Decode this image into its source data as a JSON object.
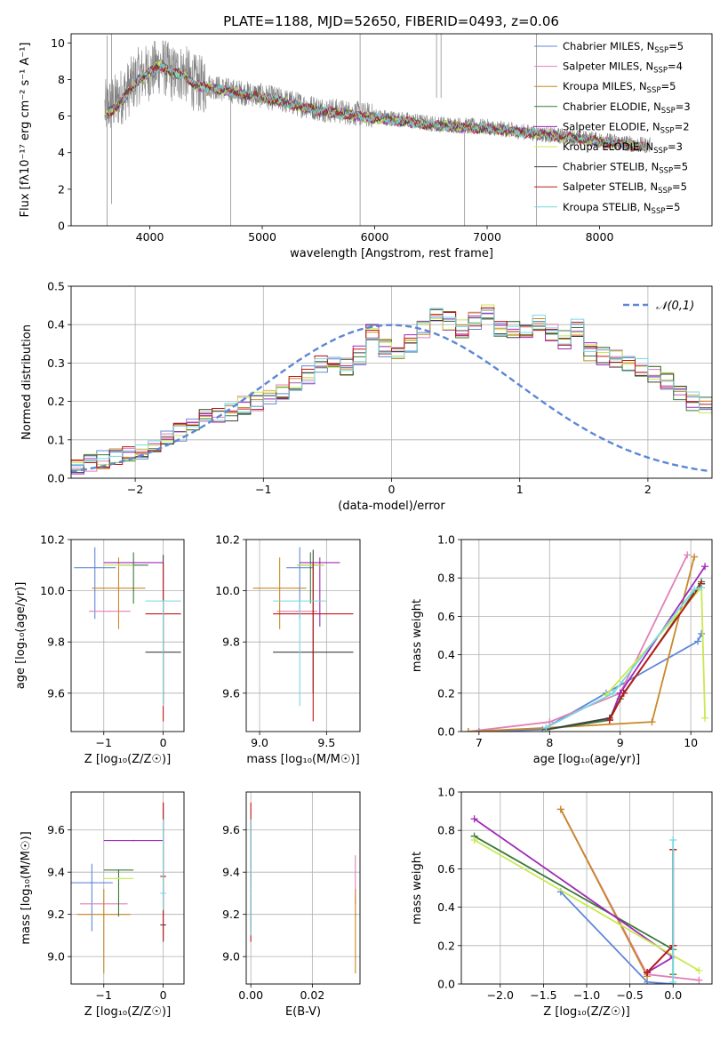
{
  "figure": {
    "title": "PLATE=1188, MJD=52650, FIBERID=0493, z=0.06"
  },
  "models": [
    {
      "name": "Chabrier MILES",
      "nssp": "5",
      "color": "#6088d8"
    },
    {
      "name": "Salpeter MILES",
      "nssp": "4",
      "color": "#e080b8"
    },
    {
      "name": "Kroupa MILES",
      "nssp": "5",
      "color": "#c88828"
    },
    {
      "name": "Chabrier ELODIE",
      "nssp": "3",
      "color": "#3a7a3a"
    },
    {
      "name": "Salpeter ELODIE",
      "nssp": "2",
      "color": "#a028b8"
    },
    {
      "name": "Kroupa ELODIE",
      "nssp": "3",
      "color": "#c8e850"
    },
    {
      "name": "Chabrier STELIB",
      "nssp": "5",
      "color": "#404040"
    },
    {
      "name": "Salpeter STELIB",
      "nssp": "5",
      "color": "#c01818"
    },
    {
      "name": "Kroupa STELIB",
      "nssp": "5",
      "color": "#78d8e0"
    }
  ],
  "chart_data": [
    {
      "id": "spectrum",
      "type": "line",
      "xlabel": "wavelength [Angstrom, rest frame]",
      "ylabel": "Flux [fλ10⁻¹⁷ erg cm⁻² s⁻¹ A⁻¹]",
      "xlim": [
        3300,
        9000
      ],
      "ylim": [
        0,
        10.5
      ],
      "xticks": [
        4000,
        5000,
        6000,
        7000,
        8000
      ],
      "yticks": [
        0,
        2,
        4,
        6,
        8,
        10
      ],
      "data_series": {
        "name": "data",
        "color": "#808080",
        "x": [
          3600,
          3700,
          3800,
          3900,
          4000,
          4100,
          4200,
          4300,
          4400,
          4500,
          4700,
          5000,
          5500,
          6000,
          6500,
          7000,
          7500,
          8000,
          8400
        ],
        "y": [
          6.4,
          6.8,
          7.4,
          8.2,
          8.4,
          8.8,
          8.3,
          8.4,
          7.8,
          7.7,
          7.4,
          7.1,
          6.4,
          6.0,
          5.6,
          5.4,
          5.0,
          4.7,
          4.4
        ]
      },
      "model_series": {
        "names_from_models": true,
        "x": [
          3600,
          3700,
          3800,
          3900,
          4000,
          4100,
          4200,
          4300,
          4400,
          4500,
          4700,
          5000,
          5500,
          6000,
          6500,
          7000,
          7500,
          8000,
          8400
        ],
        "y": [
          6.0,
          6.5,
          7.2,
          8.0,
          8.4,
          8.8,
          8.3,
          8.3,
          7.7,
          7.6,
          7.3,
          7.0,
          6.3,
          5.9,
          5.5,
          5.3,
          5.0,
          4.6,
          4.3
        ]
      },
      "legend": "top-right",
      "grid": false
    },
    {
      "id": "residuals",
      "type": "line",
      "xlabel": "(data-model)/error",
      "ylabel": "Normed distribution",
      "xlim": [
        -2.5,
        2.5
      ],
      "ylim": [
        0,
        0.5
      ],
      "xticks": [
        -2,
        -1,
        0,
        1,
        2
      ],
      "yticks": [
        0.0,
        0.1,
        0.2,
        0.3,
        0.4,
        0.5
      ],
      "bin_edges_start": -2.5,
      "bin_width": 0.1,
      "histogram_shape": [
        0.035,
        0.042,
        0.047,
        0.052,
        0.06,
        0.07,
        0.085,
        0.1,
        0.12,
        0.14,
        0.155,
        0.17,
        0.17,
        0.19,
        0.2,
        0.21,
        0.22,
        0.25,
        0.27,
        0.3,
        0.3,
        0.29,
        0.32,
        0.38,
        0.34,
        0.33,
        0.35,
        0.39,
        0.42,
        0.41,
        0.39,
        0.41,
        0.43,
        0.39,
        0.39,
        0.38,
        0.41,
        0.38,
        0.36,
        0.39,
        0.33,
        0.32,
        0.31,
        0.3,
        0.29,
        0.27,
        0.25,
        0.22,
        0.2,
        0.19,
        0.18,
        0.16,
        0.14,
        0.12,
        0.11,
        0.1,
        0.09,
        0.08,
        0.07,
        0.06,
        0.05,
        0.045,
        0.04,
        0.035,
        0.03,
        0.03,
        0.028,
        0.028,
        0.026,
        0.025
      ],
      "reference_curve": {
        "label": "𝒩(0,1)",
        "color": "#5b87d6",
        "style": "dashed",
        "mean": 0,
        "sigma": 1
      },
      "legend": "top-right",
      "grid": true
    },
    {
      "id": "age-vs-Z",
      "type": "scatter",
      "xlabel": "Z [log₁₀(Z/Z☉)]",
      "ylabel": "age  [log₁₀(age/yr)]",
      "xlim": [
        -1.55,
        0.35
      ],
      "ylim": [
        9.45,
        10.2
      ],
      "xticks": [
        -1,
        0
      ],
      "yticks": [
        9.6,
        9.8,
        10.0,
        10.2
      ],
      "points": [
        {
          "x": -1.15,
          "y": 10.09,
          "xerr": 0.35,
          "yerr_lo": 0.2,
          "yerr_hi": 0.08,
          "model": 0
        },
        {
          "x": -0.9,
          "y": 9.92,
          "xerr": 0.35,
          "yerr_lo": 0.0,
          "yerr_hi": 0.0,
          "model": 1
        },
        {
          "x": -0.75,
          "y": 10.01,
          "xerr": 0.45,
          "yerr_lo": 0.16,
          "yerr_hi": 0.12,
          "model": 2
        },
        {
          "x": -0.5,
          "y": 10.1,
          "xerr": 0.25,
          "yerr_lo": 0.15,
          "yerr_hi": 0.05,
          "model": 3
        },
        {
          "x": -0.5,
          "y": 10.11,
          "xerr": 0.5,
          "yerr_lo": 0.0,
          "yerr_hi": 0.0,
          "model": 4
        },
        {
          "x": -0.75,
          "y": 10.1,
          "xerr": 0.25,
          "yerr_lo": 0.0,
          "yerr_hi": 0.0,
          "model": 5
        },
        {
          "x": 0.0,
          "y": 9.76,
          "xerr": 0.3,
          "yerr_lo": 0.2,
          "yerr_hi": 0.38,
          "model": 6
        },
        {
          "x": 0.0,
          "y": 9.91,
          "xerr": 0.3,
          "yerr_lo": 0.42,
          "yerr_hi": 0.2,
          "model": 7
        },
        {
          "x": 0.0,
          "y": 9.96,
          "xerr": 0.3,
          "yerr_lo": 0.41,
          "yerr_hi": 0.0,
          "model": 8
        }
      ],
      "grid": true
    },
    {
      "id": "age-vs-mass",
      "type": "scatter",
      "xlabel": "mass [log₁₀(M/M☉)]",
      "ylabel": "",
      "xlim": [
        8.9,
        9.75
      ],
      "ylim": [
        9.45,
        10.2
      ],
      "xticks": [
        9.0,
        9.5
      ],
      "yticks": [
        9.6,
        9.8,
        10.0,
        10.2
      ],
      "points": [
        {
          "x": 9.3,
          "y": 10.09,
          "xerr": 0.1,
          "yerr_lo": 0.2,
          "yerr_hi": 0.08,
          "model": 0
        },
        {
          "x": 9.28,
          "y": 9.92,
          "xerr": 0.15,
          "yerr_lo": 0.0,
          "yerr_hi": 0.0,
          "model": 1
        },
        {
          "x": 9.15,
          "y": 10.01,
          "xerr": 0.2,
          "yerr_lo": 0.16,
          "yerr_hi": 0.12,
          "model": 2
        },
        {
          "x": 9.38,
          "y": 10.1,
          "xerr": 0.1,
          "yerr_lo": 0.15,
          "yerr_hi": 0.05,
          "model": 3
        },
        {
          "x": 9.45,
          "y": 10.11,
          "xerr": 0.15,
          "yerr_lo": 0.25,
          "yerr_hi": 0.02,
          "model": 4
        },
        {
          "x": 9.38,
          "y": 10.1,
          "xerr": 0.1,
          "yerr_lo": 0.0,
          "yerr_hi": 0.0,
          "model": 5
        },
        {
          "x": 9.4,
          "y": 9.76,
          "xerr": 0.3,
          "yerr_lo": 0.16,
          "yerr_hi": 0.4,
          "model": 6
        },
        {
          "x": 9.4,
          "y": 9.91,
          "xerr": 0.3,
          "yerr_lo": 0.42,
          "yerr_hi": 0.2,
          "model": 7
        },
        {
          "x": 9.3,
          "y": 9.96,
          "xerr": 0.2,
          "yerr_lo": 0.41,
          "yerr_hi": 0.0,
          "model": 8
        }
      ],
      "grid": true
    },
    {
      "id": "weight-vs-age",
      "type": "line",
      "xlabel": "age  [log₁₀(age/yr)]",
      "ylabel": "mass weight",
      "xlim": [
        6.75,
        10.3
      ],
      "ylim": [
        0,
        1.0
      ],
      "xticks": [
        7,
        8,
        9,
        10
      ],
      "yticks": [
        0.0,
        0.2,
        0.4,
        0.6,
        0.8,
        1.0
      ],
      "series": [
        {
          "model": 0,
          "x": [
            7.0,
            7.9,
            8.8,
            10.1,
            10.15
          ],
          "y": [
            0.0,
            0.01,
            0.2,
            0.47,
            0.51
          ]
        },
        {
          "model": 1,
          "x": [
            6.85,
            8.0,
            9.0,
            9.95
          ],
          "y": [
            0.0,
            0.05,
            0.2,
            0.92
          ]
        },
        {
          "model": 2,
          "x": [
            6.85,
            8.0,
            9.45,
            10.05
          ],
          "y": [
            0.0,
            0.02,
            0.05,
            0.91
          ]
        },
        {
          "model": 3,
          "x": [
            7.95,
            8.85,
            9.0,
            10.15
          ],
          "y": [
            0.01,
            0.06,
            0.17,
            0.78
          ]
        },
        {
          "model": 4,
          "x": [
            8.85,
            9.0,
            10.2
          ],
          "y": [
            0.06,
            0.2,
            0.86
          ]
        },
        {
          "model": 5,
          "x": [
            8.8,
            10.15,
            10.2
          ],
          "y": [
            0.19,
            0.75,
            0.07
          ]
        },
        {
          "model": 6,
          "x": [
            7.95,
            8.85,
            9.05,
            10.15
          ],
          "y": [
            0.01,
            0.07,
            0.2,
            0.77
          ]
        },
        {
          "model": 7,
          "x": [
            8.85,
            9.05,
            10.15
          ],
          "y": [
            0.06,
            0.2,
            0.77
          ]
        },
        {
          "model": 8,
          "x": [
            7.95,
            8.9,
            10.05,
            10.15
          ],
          "y": [
            0.02,
            0.2,
            0.74,
            0.75
          ]
        }
      ],
      "grid": true
    },
    {
      "id": "mass-vs-Z",
      "type": "scatter",
      "xlabel": "Z [log₁₀(Z/Z☉)]",
      "ylabel": "mass [log₁₀(M/M☉)]",
      "xlim": [
        -1.55,
        0.35
      ],
      "ylim": [
        8.87,
        9.78
      ],
      "xticks": [
        -1,
        0
      ],
      "yticks": [
        9.0,
        9.2,
        9.4,
        9.6
      ],
      "points": [
        {
          "x": -1.2,
          "y": 9.35,
          "xerr": 0.35,
          "yerr_lo": 0.23,
          "yerr_hi": 0.09,
          "model": 0
        },
        {
          "x": -1.0,
          "y": 9.25,
          "xerr": 0.4,
          "yerr_lo": 0.0,
          "yerr_hi": 0.0,
          "model": 1
        },
        {
          "x": -1.0,
          "y": 9.2,
          "xerr": 0.45,
          "yerr_lo": 0.28,
          "yerr_hi": 0.12,
          "model": 2
        },
        {
          "x": -0.75,
          "y": 9.41,
          "xerr": 0.25,
          "yerr_lo": 0.22,
          "yerr_hi": 0.0,
          "model": 3
        },
        {
          "x": -0.5,
          "y": 9.55,
          "xerr": 0.5,
          "yerr_lo": 0.0,
          "yerr_hi": 0.0,
          "model": 4
        },
        {
          "x": -0.75,
          "y": 9.37,
          "xerr": 0.25,
          "yerr_lo": 0.0,
          "yerr_hi": 0.0,
          "model": 5
        },
        {
          "x": 0.0,
          "y": 9.15,
          "xerr": 0.05,
          "yerr_lo": 0.08,
          "yerr_hi": 0.58,
          "model": 6
        },
        {
          "x": 0.0,
          "y": 9.38,
          "xerr": 0.05,
          "yerr_lo": 0.3,
          "yerr_hi": 0.35,
          "model": 7
        },
        {
          "x": 0.0,
          "y": 9.3,
          "xerr": 0.05,
          "yerr_lo": 0.08,
          "yerr_hi": 0.35,
          "model": 8
        }
      ],
      "grid": true
    },
    {
      "id": "mass-vs-ebv",
      "type": "scatter",
      "xlabel": "E(B-V)",
      "ylabel": "",
      "xlim": [
        -0.0015,
        0.0355
      ],
      "ylim": [
        8.87,
        9.78
      ],
      "xticks": [
        0.0,
        0.02
      ],
      "yticks": [
        9.0,
        9.2,
        9.4,
        9.6
      ],
      "points": [
        {
          "x": 0.0,
          "y": 9.35,
          "yerr_lo": 0.23,
          "yerr_hi": 0.3,
          "model": 0
        },
        {
          "x": 0.034,
          "y": 9.25,
          "yerr_lo": 0.0,
          "yerr_hi": 0.23,
          "model": 1
        },
        {
          "x": 0.034,
          "y": 9.2,
          "yerr_lo": 0.28,
          "yerr_hi": 0.12,
          "model": 2
        },
        {
          "x": 0.0,
          "y": 9.38,
          "yerr_lo": 0.31,
          "yerr_hi": 0.35,
          "model": 7
        },
        {
          "x": 0.0,
          "y": 9.3,
          "yerr_lo": 0.2,
          "yerr_hi": 0.35,
          "model": 8
        }
      ],
      "grid": true
    },
    {
      "id": "weight-vs-Z",
      "type": "line",
      "xlabel": "Z [log₁₀(Z/Z☉)]",
      "ylabel": "mass weight",
      "xlim": [
        -2.45,
        0.45
      ],
      "ylim": [
        0,
        1.0
      ],
      "xticks": [
        -2.0,
        -1.5,
        -1.0,
        -0.5,
        0.0
      ],
      "yticks": [
        0.0,
        0.2,
        0.4,
        0.6,
        0.8,
        1.0
      ],
      "series": [
        {
          "model": 0,
          "x": [
            -1.3,
            -0.3,
            0.0
          ],
          "y": [
            0.48,
            0.01,
            0.0
          ]
        },
        {
          "model": 1,
          "x": [
            -1.3,
            -0.3,
            0.3
          ],
          "y": [
            0.91,
            0.05,
            0.02
          ]
        },
        {
          "model": 2,
          "x": [
            -1.3,
            -0.3
          ],
          "y": [
            0.91,
            0.04
          ]
        },
        {
          "model": 3,
          "x": [
            -2.3,
            0.0,
            0.0
          ],
          "y": [
            0.77,
            0.18,
            0.05
          ]
        },
        {
          "model": 4,
          "x": [
            -2.3,
            0.0,
            -0.3,
            0.0
          ],
          "y": [
            0.86,
            0.14,
            0.06,
            0.2
          ]
        },
        {
          "model": 5,
          "x": [
            -2.3,
            0.3
          ],
          "y": [
            0.75,
            0.07
          ]
        },
        {
          "model": 6,
          "x": [
            -0.3,
            0.0,
            0.0
          ],
          "y": [
            0.06,
            0.2,
            0.7
          ]
        },
        {
          "model": 7,
          "x": [
            -0.3,
            0.0,
            0.0
          ],
          "y": [
            0.06,
            0.2,
            0.7
          ]
        },
        {
          "model": 8,
          "x": [
            0.0,
            0.0
          ],
          "y": [
            0.75,
            0.01
          ]
        }
      ],
      "grid": true
    }
  ]
}
